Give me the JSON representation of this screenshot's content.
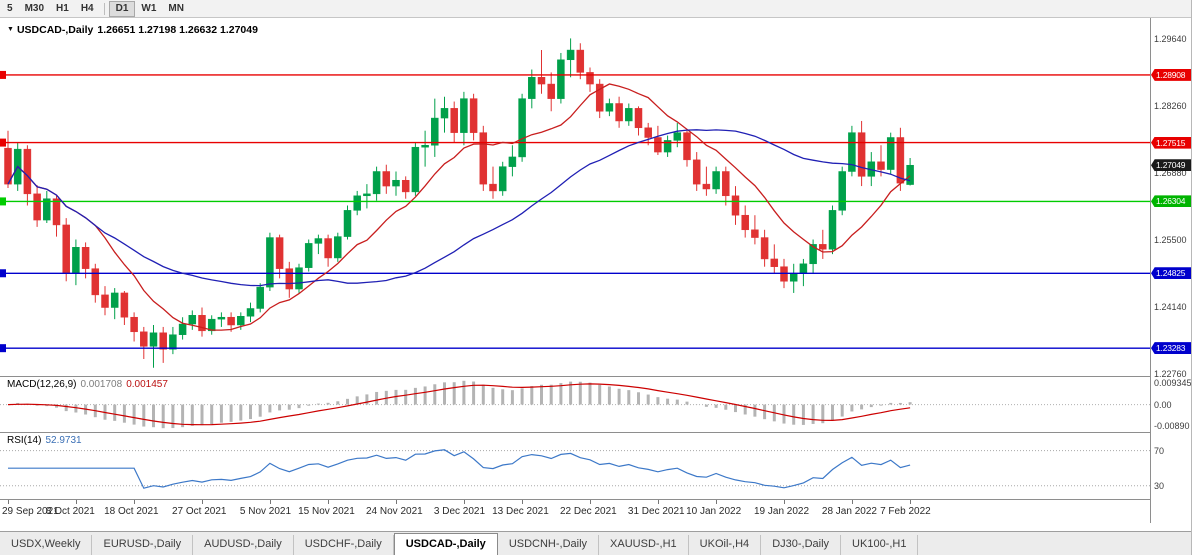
{
  "toolbar": {
    "timeframes": [
      "5",
      "M30",
      "H1",
      "H4",
      "D1",
      "W1",
      "MN"
    ],
    "active": "D1"
  },
  "chart": {
    "symbol_label": "USDCAD-,Daily",
    "ohlc_label": "1.26651 1.27198 1.26632 1.27049"
  },
  "macd_panel": {
    "label": "MACD(12,26,9)",
    "values": [
      "0.001708",
      "0.001457"
    ],
    "axis": [
      "0.009345",
      "0.00",
      "-0.00890"
    ]
  },
  "rsi_panel": {
    "label": "RSI(14)",
    "value": "52.9731",
    "levels": [
      "70",
      "30"
    ]
  },
  "price_axis": {
    "ticks": [
      {
        "text": "1.29640",
        "price": 1.2964
      },
      {
        "text": "1.28260",
        "price": 1.2826
      },
      {
        "text": "1.26880",
        "price": 1.2688
      },
      {
        "text": "1.25500",
        "price": 1.255
      },
      {
        "text": "1.24140",
        "price": 1.2414
      },
      {
        "text": "1.22760",
        "price": 1.2276
      }
    ],
    "tags": [
      {
        "text": "1.28908",
        "price": 1.28908,
        "color": "#e80000"
      },
      {
        "text": "1.27515",
        "price": 1.27515,
        "color": "#e80000"
      },
      {
        "text": "1.27049",
        "price": 1.27049,
        "color": "#1a1a1a"
      },
      {
        "text": "1.26304",
        "price": 1.26304,
        "color": "#00b400"
      },
      {
        "text": "1.24825",
        "price": 1.24825,
        "color": "#0000cc"
      },
      {
        "text": "1.23283",
        "price": 1.23283,
        "color": "#0000cc"
      }
    ]
  },
  "tabs": {
    "items": [
      "USDX,Weekly",
      "EURUSD-,Daily",
      "AUDUSD-,Daily",
      "USDCHF-,Daily",
      "USDCAD-,Daily",
      "USDCNH-,Daily",
      "XAUUSD-,H1",
      "UKOil-,H4",
      "DJ30-,Daily",
      "UK100-,H1"
    ],
    "active": "USDCAD-,Daily"
  },
  "colors": {
    "candle_up": "#00a04a",
    "candle_down": "#e03232",
    "ma_fast": "#c81e1e",
    "ma_slow": "#2020b4",
    "macd_hist": "#b4b4b4",
    "macd_signal": "#cc0000",
    "rsi_line": "#3c78c8",
    "hline_red": "#e80000",
    "hline_green": "#00cc00",
    "hline_blue": "#0000cc"
  },
  "chart_data": {
    "type": "candlestick",
    "symbol": "USDCAD-",
    "timeframe": "Daily",
    "current_bar": {
      "open": 1.26651,
      "high": 1.27198,
      "low": 1.26632,
      "close": 1.27049
    },
    "y_range": [
      1.2271,
      1.3008
    ],
    "hlines": [
      {
        "price": 1.28908,
        "color": "#e80000"
      },
      {
        "price": 1.27515,
        "color": "#e80000"
      },
      {
        "price": 1.26304,
        "color": "#00cc00"
      },
      {
        "price": 1.24825,
        "color": "#0000cc"
      },
      {
        "price": 1.23283,
        "color": "#0000cc"
      }
    ],
    "x_labels": [
      {
        "i": 0,
        "t": "29 Sep 2021"
      },
      {
        "i": 7,
        "t": "8 Oct 2021"
      },
      {
        "i": 13,
        "t": "18 Oct 2021"
      },
      {
        "i": 20,
        "t": "27 Oct 2021"
      },
      {
        "i": 27,
        "t": "5 Nov 2021"
      },
      {
        "i": 33,
        "t": "15 Nov 2021"
      },
      {
        "i": 40,
        "t": "24 Nov 2021"
      },
      {
        "i": 47,
        "t": "3 Dec 2021"
      },
      {
        "i": 53,
        "t": "13 Dec 2021"
      },
      {
        "i": 60,
        "t": "22 Dec 2021"
      },
      {
        "i": 67,
        "t": "31 Dec 2021"
      },
      {
        "i": 73,
        "t": "10 Jan 2022"
      },
      {
        "i": 80,
        "t": "19 Jan 2022"
      },
      {
        "i": 87,
        "t": "28 Jan 2022"
      },
      {
        "i": 93,
        "t": "7 Feb 2022"
      }
    ],
    "candles": [
      [
        1.274,
        1.2776,
        1.2658,
        1.2666
      ],
      [
        1.2666,
        1.2752,
        1.2652,
        1.2738
      ],
      [
        1.2738,
        1.2746,
        1.2622,
        1.2646
      ],
      [
        1.2646,
        1.2664,
        1.2578,
        1.2592
      ],
      [
        1.2592,
        1.2652,
        1.2586,
        1.2636
      ],
      [
        1.2636,
        1.2642,
        1.2558,
        1.2582
      ],
      [
        1.2582,
        1.2596,
        1.2466,
        1.2482
      ],
      [
        1.2482,
        1.2552,
        1.2458,
        1.2536
      ],
      [
        1.2536,
        1.2546,
        1.2472,
        1.2492
      ],
      [
        1.2492,
        1.2502,
        1.2422,
        1.2438
      ],
      [
        1.2438,
        1.2456,
        1.2396,
        1.2412
      ],
      [
        1.2412,
        1.2452,
        1.2388,
        1.2442
      ],
      [
        1.2442,
        1.2446,
        1.2376,
        1.2392
      ],
      [
        1.2392,
        1.2402,
        1.2342,
        1.2362
      ],
      [
        1.2362,
        1.2372,
        1.2306,
        1.2332
      ],
      [
        1.2332,
        1.2376,
        1.2288,
        1.236
      ],
      [
        1.236,
        1.2372,
        1.2298,
        1.2326
      ],
      [
        1.2326,
        1.2372,
        1.2316,
        1.2356
      ],
      [
        1.2356,
        1.2392,
        1.2346,
        1.2378
      ],
      [
        1.2378,
        1.2406,
        1.2366,
        1.2396
      ],
      [
        1.2396,
        1.2412,
        1.2352,
        1.2364
      ],
      [
        1.2364,
        1.2396,
        1.2356,
        1.2388
      ],
      [
        1.2388,
        1.2402,
        1.2372,
        1.2392
      ],
      [
        1.2392,
        1.2402,
        1.2362,
        1.2376
      ],
      [
        1.2376,
        1.2402,
        1.2366,
        1.2394
      ],
      [
        1.2394,
        1.2422,
        1.2382,
        1.241
      ],
      [
        1.241,
        1.2462,
        1.2402,
        1.2454
      ],
      [
        1.2454,
        1.2566,
        1.2446,
        1.2556
      ],
      [
        1.2556,
        1.2562,
        1.2472,
        1.2492
      ],
      [
        1.2492,
        1.2506,
        1.2432,
        1.245
      ],
      [
        1.245,
        1.2502,
        1.2442,
        1.2494
      ],
      [
        1.2494,
        1.2552,
        1.2486,
        1.2544
      ],
      [
        1.2544,
        1.2562,
        1.2522,
        1.2554
      ],
      [
        1.2554,
        1.2562,
        1.2496,
        1.2514
      ],
      [
        1.2514,
        1.2566,
        1.2506,
        1.2558
      ],
      [
        1.2558,
        1.2622,
        1.2552,
        1.2612
      ],
      [
        1.2612,
        1.2652,
        1.2602,
        1.2642
      ],
      [
        1.2642,
        1.2666,
        1.2616,
        1.2646
      ],
      [
        1.2646,
        1.2702,
        1.2632,
        1.2692
      ],
      [
        1.2692,
        1.2706,
        1.2646,
        1.2662
      ],
      [
        1.2662,
        1.2692,
        1.2642,
        1.2674
      ],
      [
        1.2674,
        1.2682,
        1.2636,
        1.265
      ],
      [
        1.265,
        1.2752,
        1.2642,
        1.2742
      ],
      [
        1.2742,
        1.2776,
        1.2702,
        1.2746
      ],
      [
        1.2746,
        1.2842,
        1.2722,
        1.2802
      ],
      [
        1.2802,
        1.2846,
        1.2772,
        1.2822
      ],
      [
        1.2822,
        1.2836,
        1.2752,
        1.2772
      ],
      [
        1.2772,
        1.2856,
        1.2746,
        1.2842
      ],
      [
        1.2842,
        1.2852,
        1.2756,
        1.2772
      ],
      [
        1.2772,
        1.2786,
        1.2652,
        1.2666
      ],
      [
        1.2666,
        1.2702,
        1.2636,
        1.2652
      ],
      [
        1.2652,
        1.2712,
        1.2642,
        1.2702
      ],
      [
        1.2702,
        1.2746,
        1.2682,
        1.2722
      ],
      [
        1.2722,
        1.2852,
        1.2712,
        1.2842
      ],
      [
        1.2842,
        1.2902,
        1.2822,
        1.2886
      ],
      [
        1.2886,
        1.2942,
        1.2852,
        1.2872
      ],
      [
        1.2872,
        1.2896,
        1.2816,
        1.2842
      ],
      [
        1.2842,
        1.2936,
        1.2832,
        1.2922
      ],
      [
        1.2922,
        1.2966,
        1.2886,
        1.2942
      ],
      [
        1.2942,
        1.2956,
        1.2882,
        1.2896
      ],
      [
        1.2896,
        1.2906,
        1.2856,
        1.2872
      ],
      [
        1.2872,
        1.2882,
        1.2802,
        1.2816
      ],
      [
        1.2816,
        1.2842,
        1.2806,
        1.2832
      ],
      [
        1.2832,
        1.2846,
        1.2782,
        1.2796
      ],
      [
        1.2796,
        1.2832,
        1.2786,
        1.2822
      ],
      [
        1.2822,
        1.2826,
        1.2766,
        1.2782
      ],
      [
        1.2782,
        1.2792,
        1.2746,
        1.2762
      ],
      [
        1.2762,
        1.2786,
        1.2726,
        1.2732
      ],
      [
        1.2732,
        1.2766,
        1.2722,
        1.2756
      ],
      [
        1.2756,
        1.2792,
        1.2742,
        1.2772
      ],
      [
        1.2772,
        1.2776,
        1.2702,
        1.2716
      ],
      [
        1.2716,
        1.2732,
        1.2652,
        1.2666
      ],
      [
        1.2666,
        1.2702,
        1.2642,
        1.2656
      ],
      [
        1.2656,
        1.2702,
        1.2646,
        1.2692
      ],
      [
        1.2692,
        1.2702,
        1.2622,
        1.2642
      ],
      [
        1.2642,
        1.2662,
        1.2582,
        1.2602
      ],
      [
        1.2602,
        1.2622,
        1.2556,
        1.2572
      ],
      [
        1.2572,
        1.2602,
        1.2542,
        1.2556
      ],
      [
        1.2556,
        1.2572,
        1.2496,
        1.2512
      ],
      [
        1.2512,
        1.2542,
        1.2482,
        1.2496
      ],
      [
        1.2496,
        1.2512,
        1.2452,
        1.2466
      ],
      [
        1.2466,
        1.2502,
        1.2442,
        1.2482
      ],
      [
        1.2482,
        1.2512,
        1.2456,
        1.2502
      ],
      [
        1.2502,
        1.2552,
        1.2482,
        1.2542
      ],
      [
        1.2542,
        1.2572,
        1.2512,
        1.2532
      ],
      [
        1.2532,
        1.2622,
        1.2522,
        1.2612
      ],
      [
        1.2612,
        1.2702,
        1.2602,
        1.2692
      ],
      [
        1.2692,
        1.2786,
        1.2682,
        1.2772
      ],
      [
        1.2772,
        1.2796,
        1.2662,
        1.2682
      ],
      [
        1.2682,
        1.2732,
        1.2662,
        1.2712
      ],
      [
        1.2712,
        1.2746,
        1.2682,
        1.2696
      ],
      [
        1.2696,
        1.2772,
        1.2686,
        1.2762
      ],
      [
        1.2762,
        1.2782,
        1.2652,
        1.2668
      ],
      [
        1.26651,
        1.27198,
        1.26632,
        1.27049
      ]
    ]
  }
}
